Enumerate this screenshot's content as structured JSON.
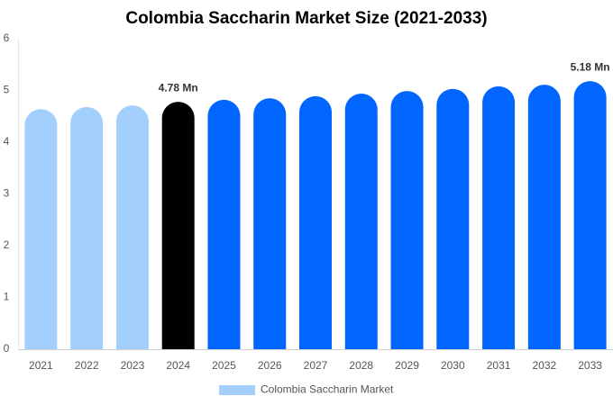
{
  "chart_data": {
    "type": "bar",
    "title": "Colombia Saccharin Market Size (2021-2033)",
    "categories": [
      "2021",
      "2022",
      "2023",
      "2024",
      "2025",
      "2026",
      "2027",
      "2028",
      "2029",
      "2030",
      "2031",
      "2032",
      "2033"
    ],
    "series": [
      {
        "name": "Colombia Saccharin Market",
        "color": "#a3cffd",
        "values": [
          4.64,
          4.68,
          4.71,
          4.78,
          4.82,
          4.85,
          4.89,
          4.94,
          4.99,
          5.03,
          5.08,
          5.11,
          5.18
        ],
        "value_labels": [
          null,
          null,
          null,
          "4.78 Mn",
          null,
          null,
          null,
          null,
          null,
          null,
          null,
          null,
          "5.18 Mn"
        ],
        "colors": [
          "#a3cffd",
          "#a3cffd",
          "#a3cffd",
          "#000000",
          "#0066ff",
          "#0066ff",
          "#0066ff",
          "#0066ff",
          "#0066ff",
          "#0066ff",
          "#0066ff",
          "#0066ff",
          "#0066ff"
        ]
      }
    ],
    "ylim": [
      0,
      6
    ],
    "yticks": [
      0,
      1,
      2,
      3,
      4,
      5,
      6
    ],
    "grid": false,
    "legend": "bottom"
  }
}
